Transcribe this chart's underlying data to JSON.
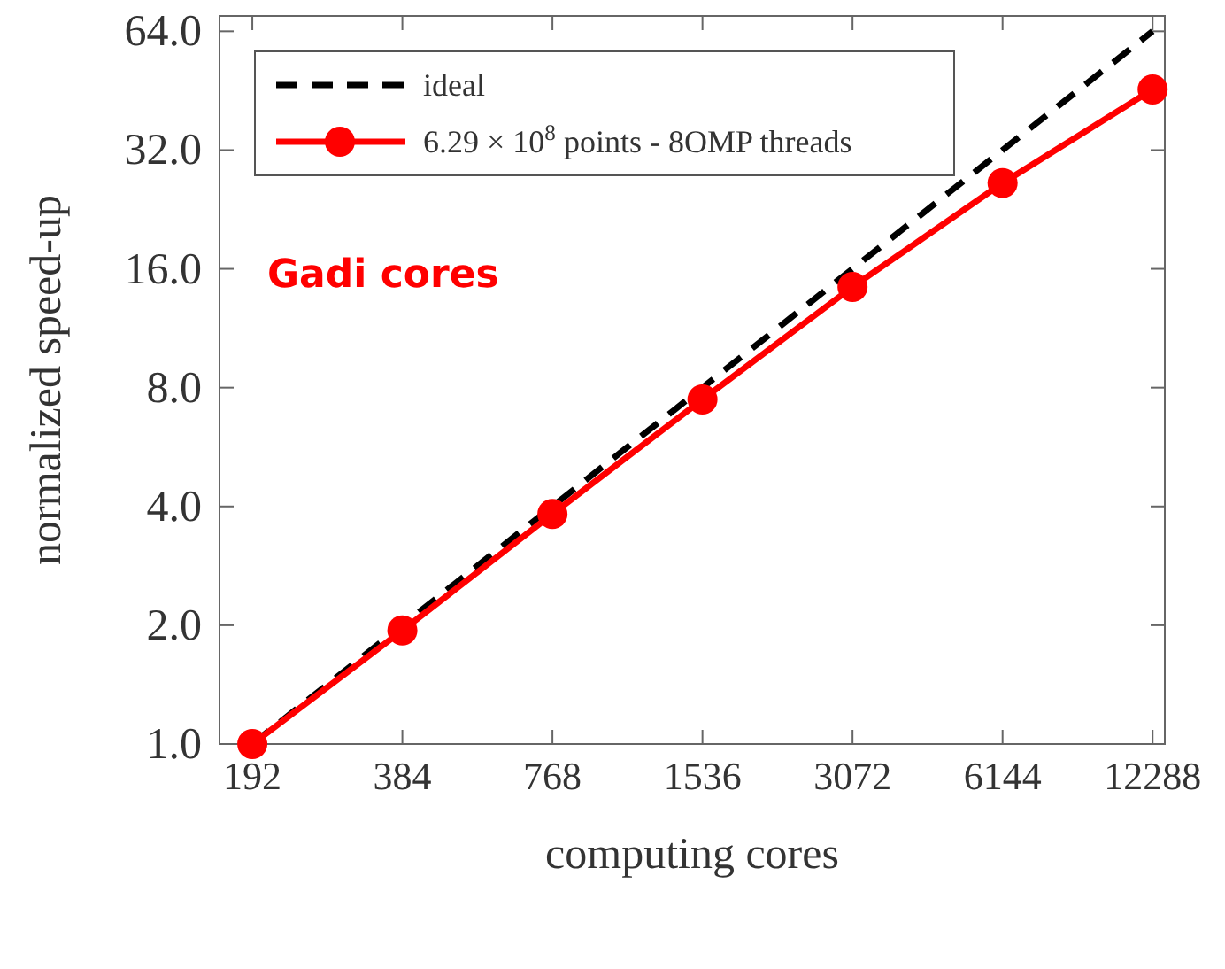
{
  "chart_data": {
    "type": "line",
    "xlabel": "computing cores",
    "ylabel": "normalized speed-up",
    "log": "xy",
    "xlim": [
      165,
      13000
    ],
    "ylim": [
      1,
      70
    ],
    "xticks": [
      192,
      384,
      768,
      1536,
      3072,
      6144,
      12288
    ],
    "yticks": [
      {
        "value": 1,
        "label": "1.0"
      },
      {
        "value": 2,
        "label": "2.0"
      },
      {
        "value": 4,
        "label": "4.0"
      },
      {
        "value": 8,
        "label": "8.0"
      },
      {
        "value": 16,
        "label": "16.0"
      },
      {
        "value": 32,
        "label": "32.0"
      },
      {
        "value": 64,
        "label": "64.0"
      }
    ],
    "series": [
      {
        "name": "ideal",
        "color": "#000000",
        "line_style": "dashed",
        "marker": "none",
        "x": [
          192,
          12288
        ],
        "values": [
          1,
          64
        ]
      },
      {
        "name": "6.29 × 10$^{8}$ points - 8OMP threads",
        "color": "#ff0000",
        "line_style": "solid",
        "marker": "circle",
        "x": [
          192,
          384,
          768,
          1536,
          3072,
          6144,
          12288
        ],
        "values": [
          1,
          1.94,
          3.83,
          7.47,
          14.4,
          26.4,
          45.6
        ]
      }
    ],
    "legend": "top left",
    "grid": false,
    "annotations": [
      "Gadi cores"
    ]
  }
}
